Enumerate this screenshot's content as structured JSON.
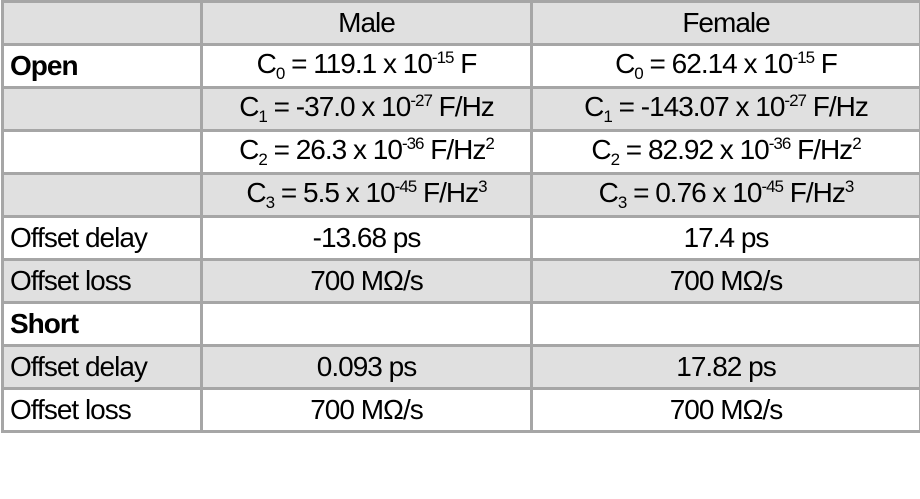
{
  "table": {
    "header": [
      null,
      "Male",
      "Female"
    ],
    "rows": [
      {
        "label": "Open",
        "section": true,
        "cells": [
          [
            {
              "text": "C"
            },
            {
              "sub": "0"
            },
            {
              "text": " = 119.1 x 10"
            },
            {
              "sup": "-15"
            },
            {
              "text": " F"
            }
          ],
          [
            {
              "text": "C"
            },
            {
              "sub": "0"
            },
            {
              "text": " = 62.14 x 10"
            },
            {
              "sup": "-15"
            },
            {
              "text": " F"
            }
          ]
        ]
      },
      {
        "label": null,
        "cells": [
          [
            {
              "text": "C"
            },
            {
              "sub": "1"
            },
            {
              "text": " = -37.0 x 10"
            },
            {
              "sup": "-27"
            },
            {
              "text": " F/Hz"
            }
          ],
          [
            {
              "text": "C"
            },
            {
              "sub": "1"
            },
            {
              "text": " = -143.07 x 10"
            },
            {
              "sup": "-27"
            },
            {
              "text": " F/Hz"
            }
          ]
        ]
      },
      {
        "label": null,
        "cells": [
          [
            {
              "text": "C"
            },
            {
              "sub": "2"
            },
            {
              "text": " = 26.3 x 10"
            },
            {
              "sup": "-36"
            },
            {
              "text": " F/Hz"
            },
            {
              "sup": "2"
            }
          ],
          [
            {
              "text": "C"
            },
            {
              "sub": "2"
            },
            {
              "text": " = 82.92 x 10"
            },
            {
              "sup": "-36"
            },
            {
              "text": " F/Hz"
            },
            {
              "sup": "2"
            }
          ]
        ]
      },
      {
        "label": null,
        "cells": [
          [
            {
              "text": "C"
            },
            {
              "sub": "3"
            },
            {
              "text": " = 5.5 x 10"
            },
            {
              "sup": "-45"
            },
            {
              "text": " F/Hz"
            },
            {
              "sup": "3"
            }
          ],
          [
            {
              "text": "C"
            },
            {
              "sub": "3"
            },
            {
              "text": " = 0.76 x 10"
            },
            {
              "sup": "-45"
            },
            {
              "text": " F/Hz"
            },
            {
              "sup": "3"
            }
          ]
        ]
      },
      {
        "label": "Offset delay",
        "cells": [
          "-13.68 ps",
          "17.4 ps"
        ]
      },
      {
        "label": "Offset loss",
        "cells": [
          "700 MΩ/s",
          "700 MΩ/s"
        ]
      },
      {
        "label": "Short",
        "section": true,
        "cells": [
          null,
          null
        ]
      },
      {
        "label": "Offset delay",
        "cells": [
          "0.093 ps",
          "17.82 ps"
        ]
      },
      {
        "label": "Offset loss",
        "cells": [
          "700 MΩ/s",
          "700 MΩ/s"
        ]
      }
    ]
  }
}
